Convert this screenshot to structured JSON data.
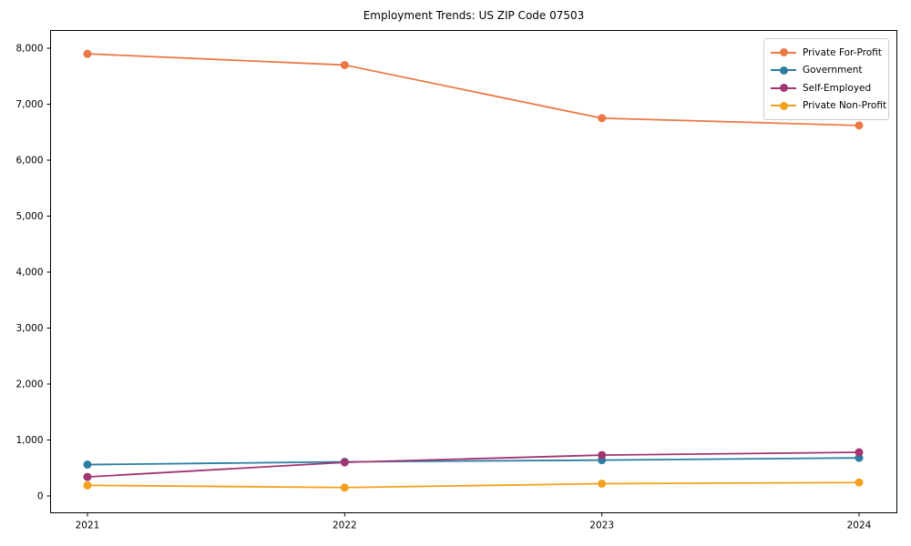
{
  "chart_data": {
    "type": "line",
    "title": "Employment Trends: US ZIP Code 07503",
    "x": [
      "2021",
      "2022",
      "2023",
      "2024"
    ],
    "series": [
      {
        "name": "Private For-Profit",
        "color": "#eb7846",
        "values": [
          7900,
          7700,
          6750,
          6620
        ]
      },
      {
        "name": "Government",
        "color": "#2b7ea1",
        "values": [
          560,
          610,
          640,
          680
        ]
      },
      {
        "name": "Self-Employed",
        "color": "#a23573",
        "values": [
          340,
          600,
          730,
          780
        ]
      },
      {
        "name": "Private Non-Profit",
        "color": "#f3a01e",
        "values": [
          190,
          150,
          220,
          240
        ]
      }
    ],
    "xlabel": "",
    "ylabel": "",
    "ylim": [
      0,
      8000
    ],
    "ytick_step": 1000,
    "grid": false,
    "legend_position": "upper right",
    "marker": "o"
  }
}
